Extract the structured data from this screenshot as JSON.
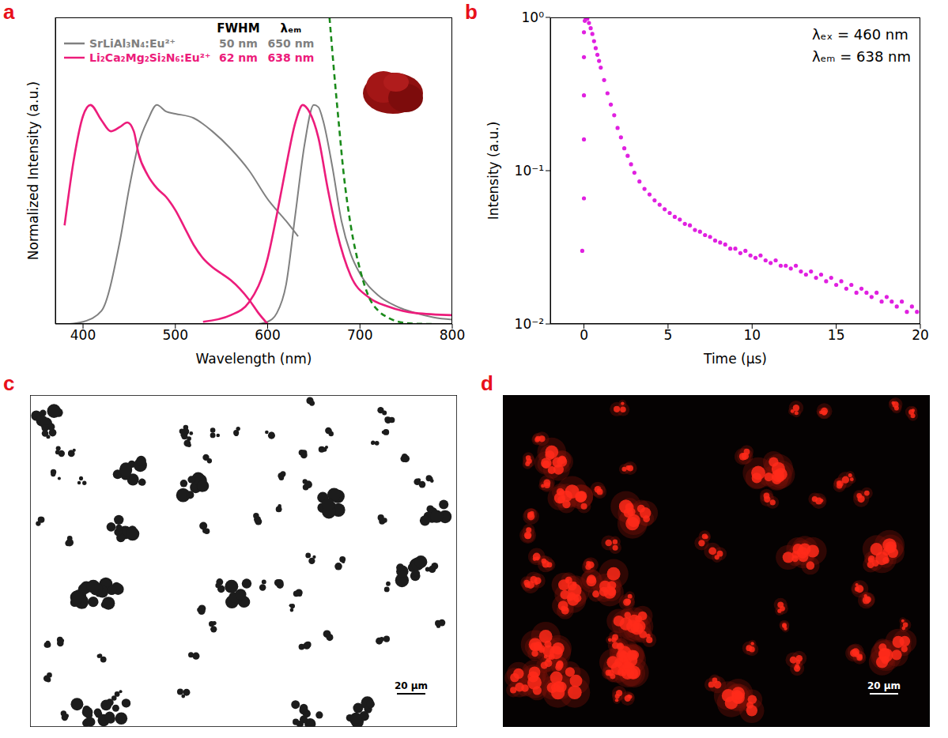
{
  "chart_data": [
    {
      "panel": "a",
      "type": "line",
      "x_label": "Wavelength (nm)",
      "y_label": "Normalized Intensity (a.u.)",
      "xlim": [
        370,
        800
      ],
      "xticks": [
        400,
        500,
        600,
        700,
        800
      ],
      "ylim": [
        0,
        1.4
      ],
      "tick_labels": "x",
      "legend": "upper left",
      "columns": [
        "FWHM",
        "λₑₘ"
      ],
      "series": [
        {
          "color": "#808080",
          "line_style": "solid",
          "x": [
            385,
            400,
            420,
            440,
            450,
            460,
            470,
            480,
            490,
            500,
            520,
            540,
            560,
            580,
            600,
            620,
            633
          ],
          "values": [
            0,
            0.01,
            0.06,
            0.38,
            0.62,
            0.82,
            0.93,
            1.0,
            0.97,
            0.96,
            0.94,
            0.88,
            0.8,
            0.7,
            0.57,
            0.47,
            0.4
          ]
        },
        {
          "name": "SrLiAl₃N₄:Eu²⁺",
          "fwhm": "50 nm",
          "peak": "650 nm",
          "color": "#808080",
          "line_style": "solid",
          "x": [
            590,
            600,
            610,
            620,
            630,
            640,
            650,
            655,
            660,
            670,
            680,
            690,
            700,
            720,
            740,
            760,
            780,
            800
          ],
          "values": [
            0,
            0.01,
            0.05,
            0.18,
            0.5,
            0.82,
            1.0,
            0.99,
            0.93,
            0.72,
            0.47,
            0.32,
            0.23,
            0.13,
            0.08,
            0.05,
            0.03,
            0.02
          ]
        },
        {
          "color": "#ec1c7b",
          "line_style": "solid",
          "x": [
            380,
            390,
            400,
            408,
            420,
            430,
            440,
            448,
            455,
            460,
            470,
            480,
            490,
            500,
            510,
            520,
            530,
            540,
            550,
            560,
            570,
            580,
            590,
            600
          ],
          "values": [
            0.45,
            0.75,
            0.95,
            1.0,
            0.93,
            0.88,
            0.9,
            0.92,
            0.88,
            0.78,
            0.68,
            0.62,
            0.58,
            0.52,
            0.44,
            0.36,
            0.3,
            0.26,
            0.23,
            0.2,
            0.16,
            0.11,
            0.05,
            0
          ]
        },
        {
          "name": "Li₂Ca₂Mg₂Si₂N₆:Eu²⁺",
          "fwhm": "62 nm",
          "peak": "638 nm",
          "color": "#ec1c7b",
          "line_style": "solid",
          "x": [
            530,
            560,
            580,
            600,
            610,
            620,
            630,
            638,
            645,
            655,
            665,
            675,
            690,
            710,
            730,
            760,
            800
          ],
          "values": [
            0.01,
            0.04,
            0.1,
            0.3,
            0.5,
            0.72,
            0.92,
            1.0,
            0.97,
            0.85,
            0.62,
            0.42,
            0.22,
            0.12,
            0.08,
            0.05,
            0.04
          ]
        },
        {
          "color": "#1a8a1a",
          "line_style": "dashed",
          "x": [
            667,
            672,
            677,
            682,
            690,
            700,
            710,
            720,
            730,
            740,
            750,
            760,
            780
          ],
          "values": [
            1.4,
            1.15,
            0.92,
            0.7,
            0.45,
            0.25,
            0.12,
            0.06,
            0.03,
            0.012,
            0.004,
            0.001,
            0
          ]
        }
      ]
    },
    {
      "panel": "b",
      "type": "scatter",
      "x_label": "Time (μs)",
      "y_label": "Intensity (a.u.)",
      "annotations": [
        "λₑₓ = 460 nm",
        "λₑₘ = 638 nm"
      ],
      "xlim": [
        -2,
        20
      ],
      "xticks": [
        0,
        5,
        10,
        15,
        20
      ],
      "ylim": [
        0.01,
        1
      ],
      "yticks": [
        {
          "value": 0.01,
          "label": "10⁻²"
        },
        {
          "value": 0.1,
          "label": "10⁻¹"
        },
        {
          "value": 1,
          "label": "10⁰"
        }
      ],
      "log": "y",
      "color": "#e020e0",
      "marker": "circle",
      "x": [
        -0.1,
        0,
        0,
        0,
        0,
        0,
        0.05,
        0.1,
        0.2,
        0.3,
        0.4,
        0.5,
        0.6,
        0.7,
        0.8,
        0.9,
        1.0,
        1.2,
        1.4,
        1.6,
        1.8,
        2.0,
        2.2,
        2.4,
        2.6,
        2.8,
        3.0,
        3.3,
        3.6,
        3.9,
        4.2,
        4.5,
        4.8,
        5.1,
        5.4,
        5.7,
        6.0,
        6.3,
        6.6,
        6.9,
        7.2,
        7.5,
        7.8,
        8.1,
        8.4,
        8.7,
        9.0,
        9.3,
        9.6,
        9.9,
        10.2,
        10.5,
        10.8,
        11.1,
        11.4,
        11.7,
        12.0,
        12.3,
        12.6,
        12.9,
        13.2,
        13.5,
        13.8,
        14.1,
        14.4,
        14.7,
        15.0,
        15.3,
        15.6,
        15.9,
        16.2,
        16.5,
        16.8,
        17.1,
        17.4,
        17.7,
        18.0,
        18.3,
        18.6,
        18.9,
        19.2,
        19.5,
        19.8
      ],
      "values": [
        0.03,
        0.066,
        0.16,
        0.31,
        0.55,
        0.8,
        0.95,
        1.0,
        0.98,
        0.92,
        0.85,
        0.78,
        0.7,
        0.63,
        0.57,
        0.52,
        0.47,
        0.39,
        0.32,
        0.27,
        0.23,
        0.19,
        0.165,
        0.14,
        0.125,
        0.11,
        0.097,
        0.085,
        0.076,
        0.07,
        0.064,
        0.06,
        0.056,
        0.053,
        0.05,
        0.048,
        0.045,
        0.044,
        0.041,
        0.04,
        0.038,
        0.037,
        0.035,
        0.034,
        0.033,
        0.031,
        0.031,
        0.029,
        0.03,
        0.028,
        0.027,
        0.028,
        0.026,
        0.025,
        0.026,
        0.024,
        0.024,
        0.023,
        0.024,
        0.022,
        0.021,
        0.022,
        0.02,
        0.021,
        0.019,
        0.02,
        0.018,
        0.019,
        0.017,
        0.018,
        0.016,
        0.017,
        0.016,
        0.015,
        0.016,
        0.014,
        0.015,
        0.014,
        0.013,
        0.014,
        0.012,
        0.013,
        0.012
      ]
    }
  ],
  "images": [
    {
      "panel": "c",
      "scale_bar": "20 μm"
    },
    {
      "panel": "d",
      "scale_bar": "20 μm"
    }
  ]
}
